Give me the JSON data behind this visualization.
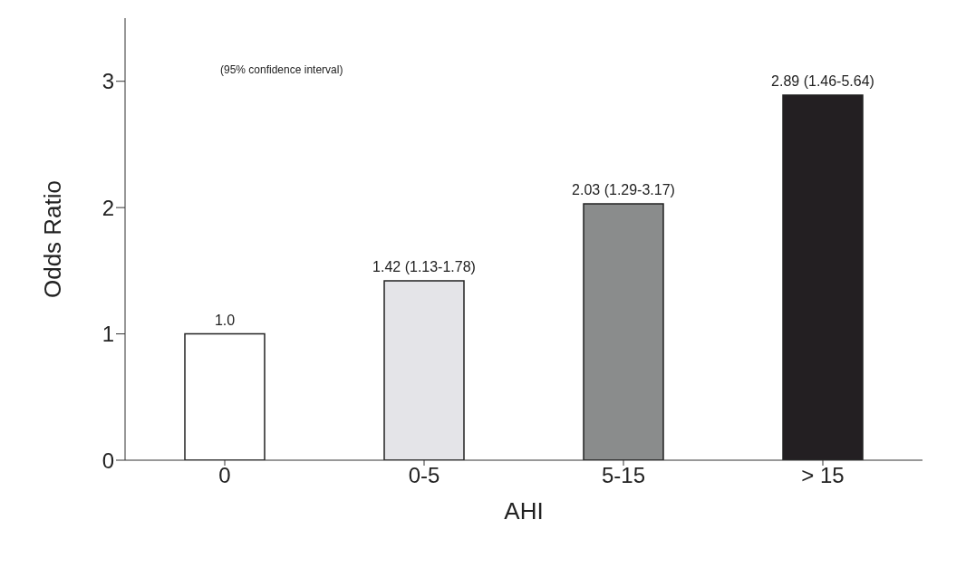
{
  "chart_data": {
    "type": "bar",
    "xlabel": "AHI",
    "ylabel": "Odds Ratio",
    "categories": [
      "0",
      "0-5",
      "5-15",
      "> 15"
    ],
    "values": [
      1.0,
      1.42,
      2.03,
      2.89
    ],
    "colors": [
      "#ffffff",
      "#e4e4e8",
      "#8a8c8c",
      "#231f22"
    ],
    "value_labels": [
      "1.0",
      "1.42 (1.13-1.78)",
      "2.03 (1.29-3.17)",
      "2.89 (1.46-5.64)"
    ],
    "annotations": [
      "(95% confidence interval)"
    ],
    "ylim": [
      0,
      3.5
    ],
    "yticks": [
      0,
      1,
      2,
      3
    ],
    "grid": false
  }
}
